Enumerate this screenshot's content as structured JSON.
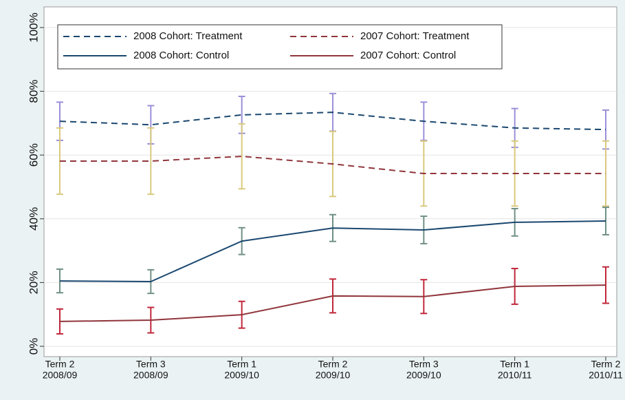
{
  "chart_data": {
    "type": "line",
    "categories": [
      [
        "Term 2",
        "2008/09"
      ],
      [
        "Term 3",
        "2008/09"
      ],
      [
        "Term 1",
        "2009/10"
      ],
      [
        "Term 2",
        "2009/10"
      ],
      [
        "Term 3",
        "2009/10"
      ],
      [
        "Term 1",
        "2010/11"
      ],
      [
        "Term 2",
        "2010/11"
      ]
    ],
    "ylim": [
      0,
      100
    ],
    "yticks": [
      {
        "value": 0,
        "label": "0%"
      },
      {
        "value": 20,
        "label": "20%"
      },
      {
        "value": 40,
        "label": "40%"
      },
      {
        "value": 60,
        "label": "60%"
      },
      {
        "value": 80,
        "label": "80%"
      },
      {
        "value": 100,
        "label": "100%"
      }
    ],
    "grid": true,
    "legend": "top-left",
    "series": [
      {
        "name": "2008 Cohort: Treatment",
        "color": "#1a476f",
        "dashed": true,
        "error_color": "#9b8fd9",
        "values": [
          70.6,
          69.5,
          72.6,
          73.4,
          70.6,
          68.5,
          68.0
        ],
        "errors": [
          6.0,
          6.0,
          5.8,
          5.9,
          6.0,
          6.1,
          6.1
        ]
      },
      {
        "name": "2007 Cohort: Treatment",
        "color": "#90353b",
        "dashed": true,
        "error_color": "#d9c97d",
        "values": [
          58.1,
          58.1,
          59.6,
          57.2,
          54.2,
          54.2,
          54.2
        ],
        "errors": [
          10.4,
          10.4,
          10.2,
          10.2,
          10.2,
          10.2,
          10.2
        ]
      },
      {
        "name": "2008 Cohort: Control",
        "color": "#1a476f",
        "dashed": false,
        "error_color": "#6f8f86",
        "values": [
          20.5,
          20.3,
          33.0,
          37.1,
          36.5,
          38.9,
          39.3
        ],
        "errors": [
          3.7,
          3.7,
          4.2,
          4.2,
          4.3,
          4.3,
          4.3
        ]
      },
      {
        "name": "2007 Cohort: Control",
        "color": "#90353b",
        "dashed": false,
        "error_color": "#c0273a",
        "values": [
          7.8,
          8.2,
          9.9,
          15.8,
          15.6,
          18.8,
          19.2
        ],
        "errors": [
          3.9,
          4.0,
          4.2,
          5.3,
          5.3,
          5.6,
          5.7
        ]
      }
    ]
  }
}
